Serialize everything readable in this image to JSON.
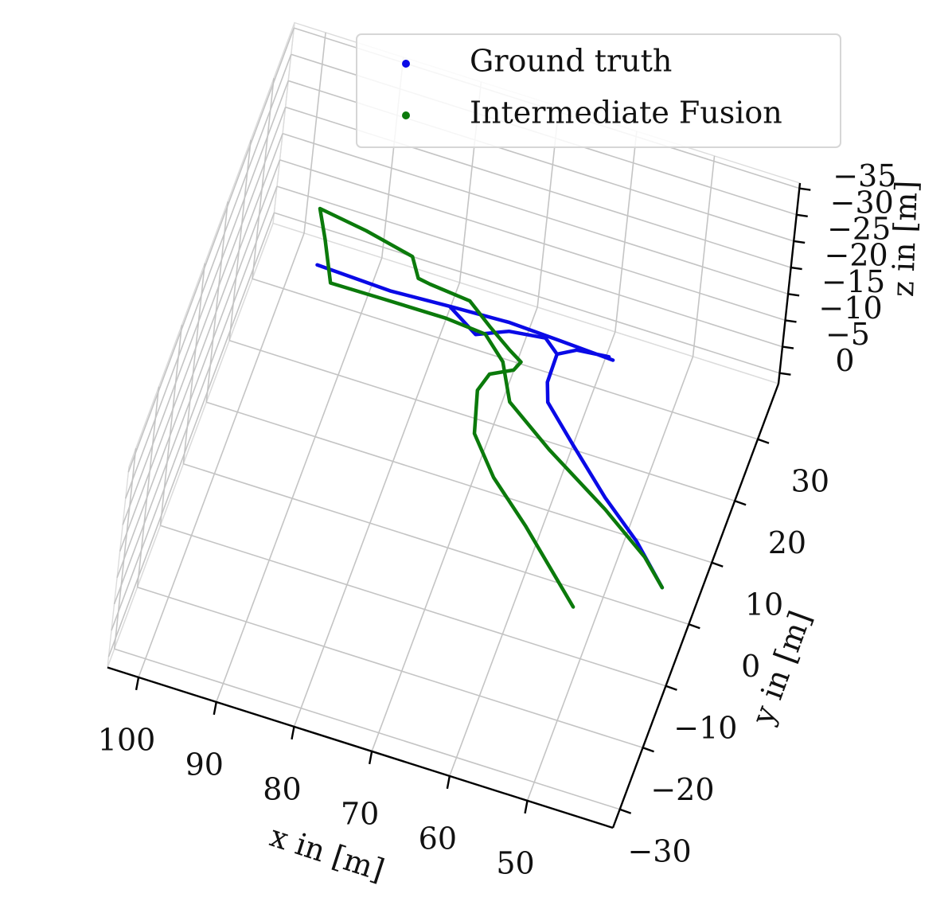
{
  "chart_data": {
    "type": "line3d",
    "xlabel": "x in [m]",
    "ylabel": "y in [m]",
    "zlabel": "z in [m]",
    "xlim": [
      104,
      39
    ],
    "ylim": [
      -33,
      39
    ],
    "zlim": [
      2,
      -36
    ],
    "xticks": [
      100,
      90,
      80,
      70,
      60,
      50
    ],
    "yticks": [
      {
        "value": -30,
        "label": "−30"
      },
      {
        "value": -20,
        "label": "−20"
      },
      {
        "value": -10,
        "label": "−10"
      },
      0,
      10,
      20,
      30
    ],
    "zticks": [
      0,
      {
        "value": -5,
        "label": "−5"
      },
      {
        "value": -10,
        "label": "−10"
      },
      {
        "value": -15,
        "label": "−15"
      },
      {
        "value": -20,
        "label": "−20"
      },
      {
        "value": -25,
        "label": "−25"
      },
      {
        "value": -30,
        "label": "−30"
      },
      {
        "value": -35,
        "label": "−35"
      }
    ],
    "grid": true,
    "legend": "upper center",
    "series": [
      {
        "name": "Ground truth",
        "color": "#0a0ae6",
        "x": [
          95.2,
          85.7,
          78.2,
          70.6,
          64.4,
          57.1,
          null,
          78.2,
          74.0,
          70.3,
          65.8,
          63.8,
          63.7,
          62.8,
          58.0,
          52.1,
          46.6,
          41.7,
          null,
          63.8,
          61.7,
          57.7
        ],
        "y": [
          25.5,
          25.1,
          25.6,
          26.0,
          25.7,
          25.3,
          null,
          25.6,
          22.7,
          24.7,
          25.4,
          23.6,
          19.1,
          16.2,
          11.1,
          5.0,
          0.1,
          -5.4,
          null,
          23.6,
          25.1,
          25.6
        ],
        "z": [
          -10,
          -10,
          -10,
          -10,
          -10,
          -10,
          null,
          -10,
          -10,
          -10,
          -10,
          -10,
          -10,
          -10,
          -10,
          -10,
          -10,
          -10,
          null,
          -10,
          -10,
          -10
        ]
      },
      {
        "name": "Intermediate Fusion",
        "color": "#0b7a0b",
        "x": [
          51.1,
          60.1,
          65.8,
          69.9,
          71.4,
          70.7,
          68.1,
          67.6,
          69.4,
          72.7,
          76.1,
          81.4,
          83.0,
          84.6,
          91.0,
          97.3,
          95.4,
          92.9,
          86.3,
          78.1,
          72.9,
          69.7,
          67.2,
          60.6,
          51.6,
          45.0,
          41.7
        ],
        "y": [
          -12.3,
          -2.7,
          2.8,
          8.3,
          14.7,
          17.6,
          19.3,
          20.8,
          22.0,
          24.5,
          27.3,
          27.9,
          28.2,
          31.1,
          32.7,
          33.8,
          29.6,
          23.5,
          23.6,
          23.7,
          23.2,
          20.0,
          14.5,
          9.4,
          3.3,
          -1.8,
          -5.4
        ],
        "z": [
          -10,
          -10,
          -10,
          -10,
          -10,
          -10,
          -10,
          -10,
          -10,
          -10,
          -10,
          -10,
          -10,
          -10,
          -10,
          -10,
          -10,
          -10,
          -10,
          -10,
          -10,
          -10,
          -10,
          -10,
          -10,
          -10,
          -10
        ]
      }
    ]
  }
}
